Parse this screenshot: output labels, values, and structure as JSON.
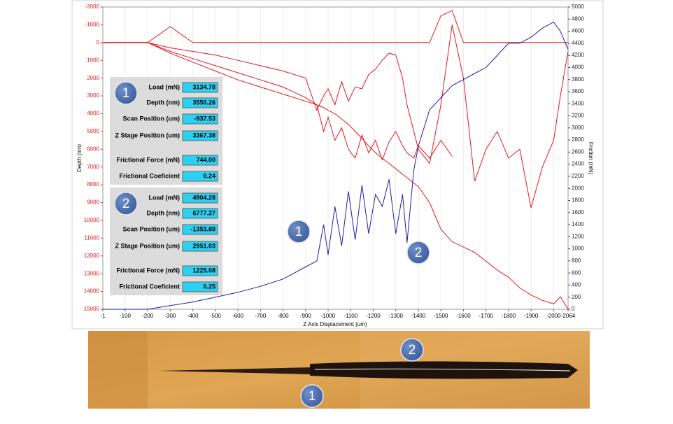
{
  "chart_data": {
    "type": "line",
    "x_label": "Z Axis Displacement (um)",
    "y_label": "Depth (nm)",
    "y2_label": "Friction (mN)",
    "x": [
      -1,
      -200,
      -300,
      -400,
      -500,
      -600,
      -700,
      -800,
      -900,
      -950,
      -980,
      -1000,
      -1030,
      -1060,
      -1090,
      -1120,
      -1150,
      -1180,
      -1210,
      -1240,
      -1270,
      -1300,
      -1330,
      -1350,
      -1380,
      -1400,
      -1450,
      -1500,
      -1550,
      -1600,
      -1650,
      -1700,
      -1750,
      -1800,
      -1850,
      -1900,
      -1950,
      -2000,
      -2030,
      -2064
    ],
    "series": [
      {
        "color": "#e3191c",
        "axis": "y",
        "values": [
          0,
          0,
          -900,
          0,
          0,
          0,
          0,
          0,
          0,
          0,
          0,
          0,
          0,
          0,
          0,
          0,
          0,
          0,
          0,
          0,
          0,
          0,
          0,
          0,
          0,
          0,
          0,
          -1500,
          -1800,
          0,
          0,
          0,
          0,
          0,
          0,
          0,
          0,
          0,
          0,
          0
        ]
      },
      {
        "color": "#e3191c",
        "axis": "y",
        "values": [
          0,
          0,
          300,
          500,
          700,
          1000,
          1300,
          1600,
          2000,
          3800,
          3000,
          2600,
          3500,
          2200,
          3300,
          2500,
          2600,
          1800,
          1500,
          1000,
          600,
          700,
          2000,
          3500,
          5000,
          6000,
          6800,
          3500,
          -1000,
          2000,
          7800,
          6000,
          5000,
          6500,
          6000,
          9300,
          7000,
          5500,
          3000,
          500
        ]
      },
      {
        "color": "#e3191c",
        "axis": "y",
        "values": [
          0,
          0,
          500,
          900,
          1300,
          1700,
          2100,
          2500,
          3100,
          3500,
          5000,
          4200,
          5500,
          4800,
          6000,
          6500,
          5200,
          6200,
          5500,
          6600,
          5600,
          5000,
          5800,
          6200,
          6500,
          5800,
          6500,
          5500,
          6400,
          null,
          null,
          null,
          null,
          null,
          null,
          null,
          null,
          null,
          null,
          null
        ]
      },
      {
        "color": "#e3191c",
        "axis": "y",
        "values": [
          0,
          0,
          600,
          1100,
          1600,
          2100,
          2500,
          2900,
          3300,
          3500,
          3650,
          3800,
          4000,
          4300,
          4600,
          5000,
          5400,
          5800,
          6200,
          6500,
          6800,
          7100,
          7400,
          7600,
          7900,
          8100,
          9000,
          10500,
          11200,
          11500,
          11800,
          12300,
          12800,
          13200,
          13800,
          14200,
          14500,
          14700,
          14300,
          15000
        ]
      },
      {
        "color": "#1e1ea8",
        "axis": "y2",
        "values": [
          0,
          0,
          60,
          120,
          200,
          280,
          380,
          500,
          700,
          800,
          1400,
          900,
          1700,
          1050,
          1950,
          1150,
          2050,
          1250,
          1900,
          1700,
          2150,
          1250,
          1900,
          1100,
          2300,
          2700,
          3300,
          3500,
          3700,
          3800,
          3900,
          4000,
          4200,
          4400,
          4400,
          4500,
          4650,
          4750,
          4600,
          4300
        ]
      }
    ],
    "xlim": [
      -1,
      -2064
    ],
    "xticks": [
      -1,
      -100,
      -200,
      -300,
      -400,
      -500,
      -600,
      -700,
      -800,
      -900,
      -1000,
      -1100,
      -1200,
      -1300,
      -1400,
      -1500,
      -1600,
      -1700,
      -1800,
      -1900,
      -2000,
      -2064
    ],
    "ylim": [
      15000,
      -2000
    ],
    "yticks": [
      -2000,
      -1000,
      0,
      1000,
      2000,
      3000,
      4000,
      5000,
      6000,
      7000,
      8000,
      9000,
      10000,
      11000,
      12000,
      13000,
      14000,
      15000
    ],
    "y2lim": [
      0,
      5000
    ],
    "y2ticks": [
      0,
      200,
      400,
      600,
      800,
      1000,
      1200,
      1400,
      1600,
      1800,
      2000,
      2200,
      2400,
      2600,
      2800,
      3000,
      3200,
      3400,
      3600,
      3800,
      4000,
      4200,
      4400,
      4600,
      4800,
      5000
    ],
    "grid": true,
    "annotations": [
      "1",
      "2"
    ]
  },
  "readouts": [
    {
      "badge": "1",
      "rows": [
        [
          "Load (mN)",
          "3134.78"
        ],
        [
          "Depth (nm)",
          "3550.26"
        ],
        [
          "Scan Position (um)",
          "-937.53"
        ],
        [
          "Z Stage Position (um)",
          "3367.38"
        ],
        [
          "Frictional Force (mN)",
          "744.00"
        ],
        [
          "Frictional Coeficient",
          "0.24"
        ]
      ]
    },
    {
      "badge": "2",
      "rows": [
        [
          "Load (mN)",
          "4904.28"
        ],
        [
          "Depth (nm)",
          "6777.27"
        ],
        [
          "Scan Position (um)",
          "-1353.89"
        ],
        [
          "Z Stage Position (um)",
          "2951.03"
        ],
        [
          "Frictional Force (mN)",
          "1225.08"
        ],
        [
          "Frictional Coeficient",
          "0.25"
        ]
      ]
    }
  ],
  "photo_markers": [
    "2",
    "1"
  ]
}
